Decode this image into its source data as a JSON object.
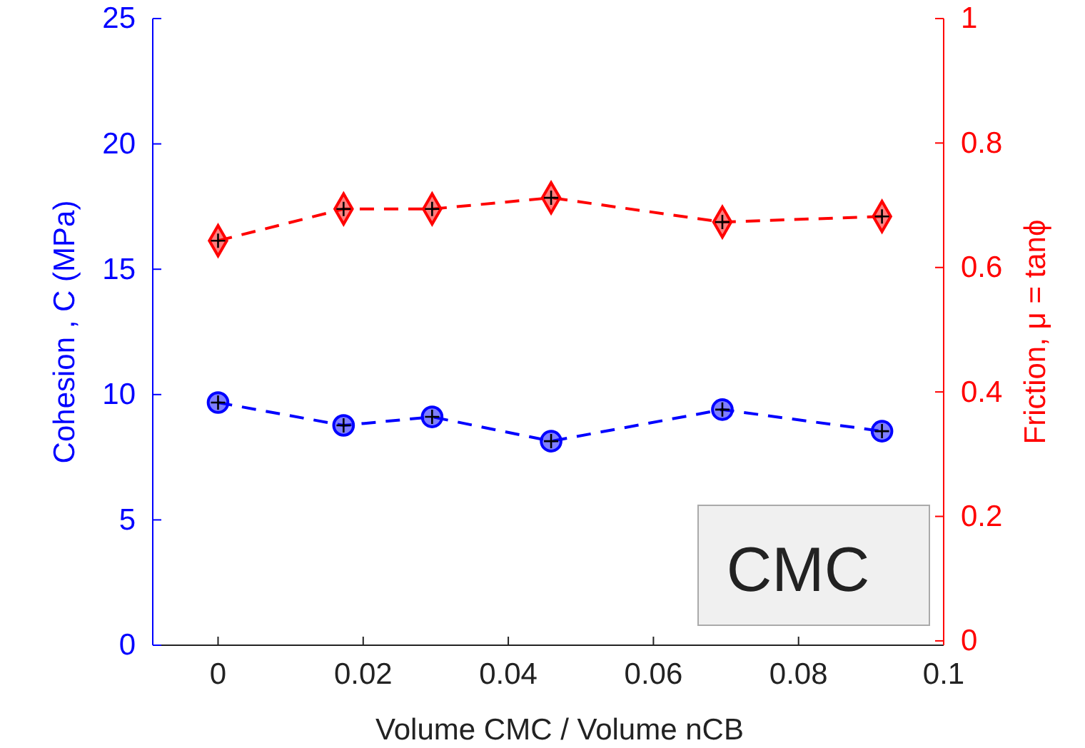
{
  "chart_data": {
    "type": "line",
    "xlabel": "Volume CMC / Volume nCB",
    "ylabel": "Cohesion , C (MPa)",
    "y2label": "Friction, μ = tanϕ",
    "x": [
      0,
      0.0173,
      0.0295,
      0.0459,
      0.0695,
      0.0915
    ],
    "xlim": [
      -0.009,
      0.1
    ],
    "xticks": [
      0,
      0.02,
      0.04,
      0.06,
      0.08,
      0.1
    ],
    "ylim": [
      0,
      25
    ],
    "yticks": [
      0,
      5,
      10,
      15,
      20,
      25
    ],
    "y2lim": [
      -0.007,
      1
    ],
    "y2ticks": [
      0,
      0.2,
      0.4,
      0.6,
      0.8,
      1
    ],
    "line_style": "dashed",
    "series": [
      {
        "color": "#0000ff",
        "marker": "circle",
        "values": [
          9.68,
          8.77,
          9.11,
          8.14,
          9.4,
          8.54
        ]
      },
      {
        "color": "#ff0000",
        "marker": "diamond",
        "axis": "y2",
        "values": [
          0.643,
          0.694,
          0.694,
          0.712,
          0.673,
          0.682
        ]
      }
    ],
    "annotations": [
      "CMC"
    ]
  }
}
